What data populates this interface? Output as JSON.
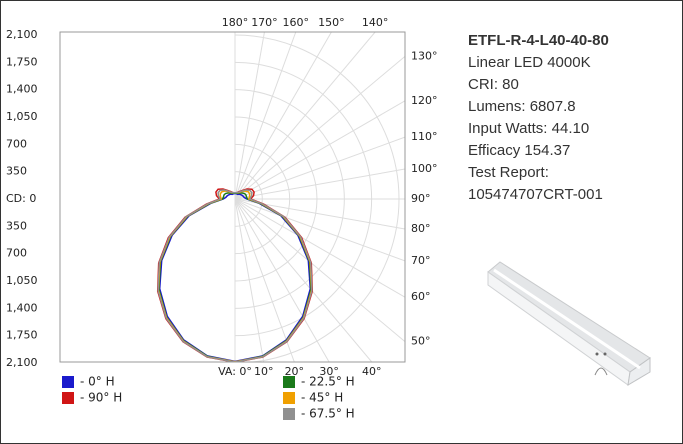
{
  "chart_data": {
    "type": "polar",
    "angles": [
      0,
      10,
      20,
      30,
      40,
      50,
      60,
      70,
      80,
      90,
      100,
      110,
      120,
      130,
      140,
      150,
      160,
      170,
      180
    ],
    "series": [
      {
        "name": "- 0° H",
        "color": "#1a1acc",
        "values": [
          2080,
          2040,
          1920,
          1735,
          1500,
          1225,
          930,
          625,
          315,
          150,
          120,
          110,
          100,
          90,
          80,
          70,
          70,
          70,
          70
        ]
      },
      {
        "name": "- 90° H",
        "color": "#d01515",
        "values": [
          2090,
          2055,
          1945,
          1770,
          1540,
          1275,
          985,
          680,
          370,
          200,
          240,
          260,
          250,
          200,
          140,
          110,
          90,
          80,
          80
        ]
      },
      {
        "name": "- 22.5° H",
        "color": "#1a7a1a",
        "values": [
          2085,
          2045,
          1930,
          1750,
          1515,
          1245,
          950,
          645,
          330,
          160,
          150,
          150,
          140,
          120,
          100,
          85,
          80,
          75,
          75
        ]
      },
      {
        "name": "- 45° H",
        "color": "#f0a000",
        "values": [
          2085,
          2050,
          1935,
          1755,
          1525,
          1255,
          960,
          655,
          345,
          175,
          190,
          200,
          190,
          160,
          120,
          95,
          85,
          80,
          80
        ]
      },
      {
        "name": "- 67.5° H",
        "color": "#909090",
        "values": [
          2088,
          2052,
          1940,
          1762,
          1532,
          1265,
          972,
          668,
          358,
          188,
          215,
          230,
          220,
          180,
          130,
          100,
          88,
          80,
          80
        ]
      }
    ],
    "rlim": [
      0,
      2100
    ],
    "upper_ticks": [
      {
        "value": 2100,
        "label": "2,100"
      },
      {
        "value": 1750,
        "label": "1,750"
      },
      {
        "value": 1400,
        "label": "1,400"
      },
      {
        "value": 1050,
        "label": "1,050"
      },
      700,
      350
    ],
    "center_tick": {
      "value": 0,
      "label": "CD: 0"
    },
    "lower_ticks": [
      350,
      700,
      {
        "value": 1050,
        "label": "1,050"
      },
      {
        "value": 1400,
        "label": "1,400"
      },
      {
        "value": 1750,
        "label": "1,750"
      },
      {
        "value": 2100,
        "label": "2,100"
      }
    ],
    "angle_ticks": [
      {
        "value": 180,
        "label": "180°"
      },
      {
        "value": 170,
        "label": "170°"
      },
      {
        "value": 160,
        "label": "160°"
      },
      {
        "value": 150,
        "label": "150°"
      },
      {
        "value": 140,
        "label": "140°"
      },
      {
        "value": 130,
        "label": "130°"
      },
      {
        "value": 120,
        "label": "120°"
      },
      {
        "value": 110,
        "label": "110°"
      },
      {
        "value": 100,
        "label": "100°"
      },
      {
        "value": 90,
        "label": "90°"
      },
      {
        "value": 80,
        "label": "80°"
      },
      {
        "value": 70,
        "label": "70°"
      },
      {
        "value": 60,
        "label": "60°"
      },
      {
        "value": 50,
        "label": "50°"
      },
      {
        "value": 40,
        "label": "40°"
      },
      {
        "value": 30,
        "label": "30°"
      },
      {
        "value": 20,
        "label": "20°"
      },
      {
        "value": 10,
        "label": "10°"
      },
      {
        "value": 0,
        "label": "VA: 0°"
      }
    ],
    "grid": true
  },
  "product": {
    "model": "ETFL-R-4-L40-40-80",
    "lines": [
      "Linear LED 4000K",
      "CRI: 80",
      "Lumens: 6807.8",
      "Input Watts: 44.10",
      "Efficacy 154.37",
      "Test Report:",
      "105474707CRT-001"
    ]
  }
}
